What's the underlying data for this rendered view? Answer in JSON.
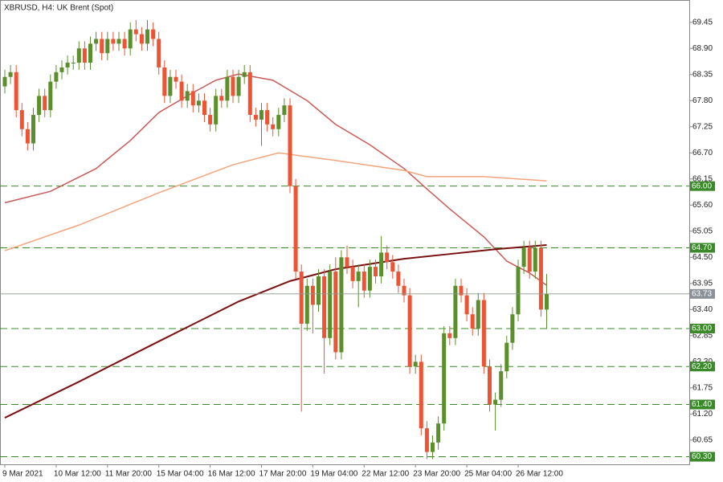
{
  "chart_data": {
    "type": "candlestick",
    "title": "XBRUSD, H4:  UK Brent (Spot)",
    "categories": [
      "9 Mar 2021",
      null,
      null,
      null,
      null,
      null,
      null,
      null,
      null,
      "10 Mar 12:00",
      null,
      null,
      null,
      null,
      null,
      null,
      null,
      null,
      "11 Mar 20:00",
      null,
      null,
      null,
      null,
      null,
      null,
      null,
      null,
      "15 Mar 04:00",
      null,
      null,
      null,
      null,
      null,
      null,
      null,
      null,
      "16 Mar 12:00",
      null,
      null,
      null,
      null,
      null,
      null,
      null,
      null,
      "17 Mar 20:00",
      null,
      null,
      null,
      null,
      null,
      null,
      null,
      null,
      "19 Mar 04:00",
      null,
      null,
      null,
      null,
      null,
      null,
      null,
      null,
      "22 Mar 12:00",
      null,
      null,
      null,
      null,
      null,
      null,
      null,
      null,
      "23 Mar 20:00",
      null,
      null,
      null,
      null,
      null,
      null,
      null,
      null,
      "25 Mar 04:00",
      null,
      null,
      null,
      null,
      null,
      null,
      null,
      null,
      "26 Mar 12:00",
      null,
      null,
      null,
      null,
      null
    ],
    "open": [
      68.1,
      68.3,
      68.4,
      67.6,
      67.2,
      66.9,
      67.5,
      67.9,
      67.6,
      68.2,
      68.4,
      68.5,
      68.6,
      68.6,
      68.9,
      68.6,
      69.0,
      69.1,
      68.8,
      69.1,
      69.0,
      69.1,
      68.9,
      69.3,
      69.2,
      69.0,
      69.3,
      69.1,
      68.5,
      67.9,
      68.3,
      68.2,
      67.8,
      68.0,
      67.7,
      67.8,
      67.5,
      67.3,
      67.9,
      67.8,
      68.3,
      67.9,
      68.3,
      68.4,
      67.5,
      67.4,
      67.6,
      67.3,
      67.2,
      67.5,
      67.7,
      66.0,
      64.2,
      63.1,
      63.9,
      63.5,
      64.1,
      62.8,
      64.2,
      62.5,
      64.5,
      64.3,
      64.0,
      64.2,
      63.8,
      64.3,
      64.1,
      64.6,
      64.4,
      64.2,
      63.9,
      63.7,
      62.2,
      62.3,
      60.9,
      60.4,
      60.6,
      61.0,
      62.9,
      62.8,
      63.9,
      63.7,
      63.3,
      63.0,
      63.6,
      62.2,
      61.4,
      61.5,
      62.1,
      62.7,
      63.3,
      64.3,
      64.7,
      64.2,
      64.7,
      63.4
    ],
    "high": [
      68.45,
      68.55,
      68.55,
      67.75,
      67.35,
      67.65,
      68.05,
      68.05,
      68.35,
      68.55,
      68.65,
      68.75,
      68.75,
      69.05,
      69.05,
      69.15,
      69.25,
      69.25,
      69.25,
      69.25,
      69.25,
      69.25,
      69.45,
      69.5,
      69.35,
      69.5,
      69.45,
      69.25,
      68.65,
      68.45,
      68.45,
      68.35,
      68.15,
      68.15,
      67.95,
      67.95,
      67.65,
      68.05,
      68.05,
      68.45,
      68.45,
      68.45,
      68.55,
      68.55,
      67.65,
      67.75,
      67.75,
      67.45,
      67.65,
      67.85,
      67.85,
      66.15,
      64.35,
      64.05,
      64.05,
      64.25,
      64.25,
      64.35,
      64.5,
      64.65,
      64.75,
      64.45,
      64.35,
      64.35,
      64.45,
      64.45,
      64.95,
      64.75,
      64.55,
      64.35,
      64.05,
      63.85,
      62.45,
      62.45,
      61.05,
      60.75,
      61.15,
      63.05,
      63.05,
      64.05,
      64.05,
      63.85,
      63.45,
      63.75,
      63.75,
      62.35,
      61.65,
      62.25,
      62.85,
      63.45,
      64.45,
      64.85,
      64.85,
      64.85,
      64.85,
      64.15
    ],
    "low": [
      67.95,
      68.15,
      67.45,
      67.05,
      66.75,
      66.75,
      67.35,
      67.45,
      67.45,
      68.05,
      68.25,
      68.35,
      68.45,
      68.45,
      68.45,
      68.45,
      68.85,
      68.65,
      68.65,
      68.85,
      68.85,
      68.75,
      68.75,
      69.05,
      68.85,
      68.85,
      68.95,
      68.35,
      67.75,
      67.75,
      68.05,
      67.65,
      67.65,
      67.55,
      67.55,
      67.35,
      67.15,
      67.15,
      67.65,
      67.65,
      67.75,
      67.75,
      68.15,
      67.35,
      67.25,
      66.85,
      67.15,
      67.05,
      67.05,
      67.35,
      65.85,
      64.05,
      61.25,
      62.95,
      62.9,
      63.35,
      62.05,
      62.65,
      62.35,
      62.35,
      64.15,
      63.85,
      63.45,
      63.65,
      63.65,
      63.95,
      63.95,
      64.25,
      64.05,
      63.75,
      63.55,
      62.05,
      62.05,
      60.75,
      60.25,
      60.25,
      60.45,
      60.85,
      62.65,
      62.65,
      63.55,
      63.15,
      62.85,
      62.85,
      62.05,
      61.25,
      60.85,
      61.35,
      61.95,
      62.55,
      63.15,
      64.15,
      64.05,
      64.05,
      63.25,
      63.0
    ],
    "close": [
      68.3,
      68.4,
      67.6,
      67.2,
      66.9,
      67.5,
      67.9,
      67.6,
      68.2,
      68.4,
      68.5,
      68.6,
      68.6,
      68.9,
      68.6,
      69.0,
      69.1,
      68.8,
      69.1,
      69.0,
      69.1,
      68.9,
      69.3,
      69.2,
      69.0,
      69.3,
      69.1,
      68.5,
      67.9,
      68.3,
      68.2,
      67.8,
      68.0,
      67.7,
      67.8,
      67.5,
      67.3,
      67.9,
      67.8,
      68.3,
      67.9,
      68.3,
      68.4,
      67.5,
      67.4,
      67.6,
      67.3,
      67.2,
      67.5,
      67.7,
      66.0,
      64.2,
      63.1,
      63.9,
      63.5,
      64.1,
      62.8,
      64.2,
      62.5,
      64.5,
      64.3,
      64.0,
      64.2,
      63.8,
      64.3,
      64.1,
      64.6,
      64.4,
      64.2,
      63.9,
      63.7,
      62.2,
      62.3,
      60.9,
      60.4,
      60.6,
      61.0,
      62.9,
      62.8,
      63.9,
      63.7,
      63.3,
      63.0,
      63.6,
      62.2,
      61.4,
      61.5,
      62.1,
      62.7,
      63.3,
      64.3,
      64.7,
      64.2,
      64.7,
      63.4,
      63.73
    ],
    "colors": {
      "up": "#5b8f2c",
      "down": "#ec5434"
    },
    "ylim": [
      60.14,
      69.92
    ],
    "yticks": [
      60.65,
      {
        "value": 61.2,
        "label": "61.20"
      },
      61.75,
      {
        "value": 62.3,
        "label": "62.30"
      },
      62.85,
      {
        "value": 63.4,
        "label": "63.40"
      },
      63.95,
      {
        "value": 64.5,
        "label": "64.50"
      },
      65.05,
      {
        "value": 65.6,
        "label": "65.60"
      },
      66.15,
      {
        "value": 66.7,
        "label": "66.70"
      },
      67.25,
      {
        "value": 67.8,
        "label": "67.80"
      },
      68.35,
      {
        "value": 68.9,
        "label": "68.90"
      },
      69.45
    ],
    "levels": [
      {
        "value": 66,
        "label": "66.00"
      },
      {
        "value": 64.7,
        "label": "64.70"
      },
      {
        "value": 63,
        "label": "63.00"
      },
      {
        "value": 62.2,
        "label": "62.20"
      },
      {
        "value": 61.4,
        "label": "61.40"
      },
      {
        "value": 60.3,
        "label": "60.30"
      }
    ],
    "level_color": "#3b8a2a",
    "overlays": [
      {
        "color": "#c95a58",
        "x": [
          0,
          8,
          16,
          22,
          27,
          33,
          37,
          41,
          47,
          53,
          58,
          64,
          70,
          74,
          78,
          84,
          88,
          92,
          95
        ],
        "values": [
          65.65,
          65.89,
          66.37,
          66.96,
          67.55,
          67.97,
          68.23,
          68.36,
          68.23,
          67.8,
          67.3,
          66.87,
          66.37,
          65.94,
          65.52,
          64.93,
          64.42,
          64.17,
          63.91
        ]
      },
      {
        "color": "#f5a47c",
        "x": [
          0,
          13,
          27,
          40,
          48,
          58,
          70,
          74,
          84,
          95
        ],
        "values": [
          64.64,
          65.18,
          65.86,
          66.45,
          66.7,
          66.54,
          66.33,
          66.2,
          66.2,
          66.11
        ]
      },
      {
        "color": "#7a0f0f",
        "x": [
          0,
          13,
          27,
          41,
          50,
          58,
          70,
          78,
          86,
          95
        ],
        "values": [
          61.12,
          61.88,
          62.73,
          63.57,
          64.0,
          64.25,
          64.47,
          64.57,
          64.67,
          64.76
        ]
      }
    ]
  }
}
